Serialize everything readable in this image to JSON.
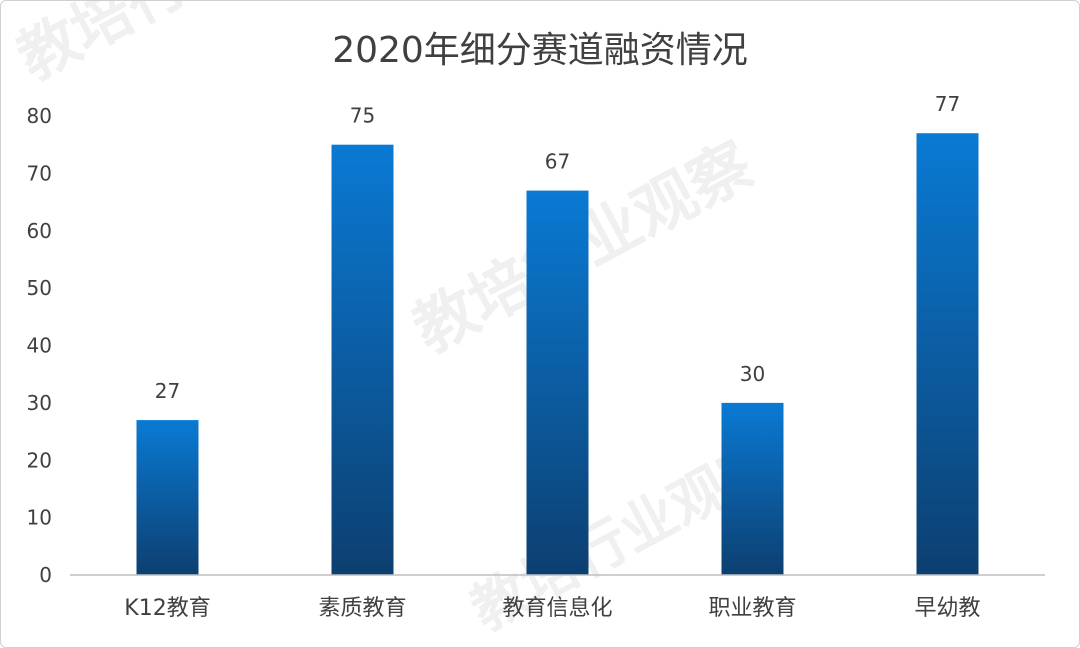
{
  "watermark": "教培行业观察",
  "chart_data": {
    "type": "bar",
    "title": "2020年细分赛道融资情况",
    "categories": [
      "K12教育",
      "素质教育",
      "教育信息化",
      "职业教育",
      "早幼教"
    ],
    "values": [
      27,
      75,
      67,
      30,
      77
    ],
    "ylim": [
      0,
      80
    ],
    "yticks": [
      0,
      10,
      20,
      30,
      40,
      50,
      60,
      70,
      80
    ],
    "grid": false,
    "xlabel": "",
    "ylabel": "",
    "colors": {
      "bar_top": "#0a7ad4",
      "bar_bottom": "#0d3f70",
      "axis": "#bfbfbf",
      "text": "#404040",
      "title": "#404040"
    }
  }
}
